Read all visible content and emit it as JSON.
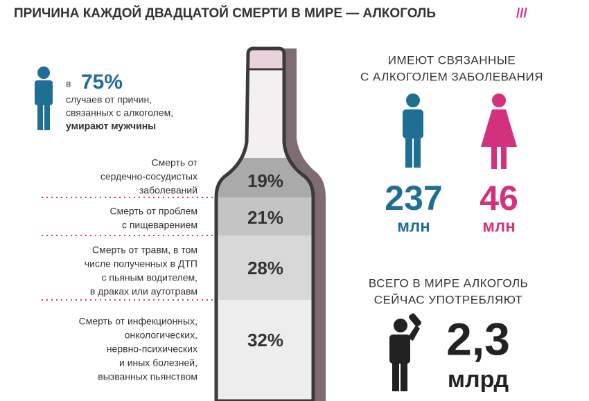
{
  "header": {
    "title": "ПРИЧИНА КАЖДОЙ ДВАДЦАТОЙ СМЕРТИ В МИРЕ — АЛКОГОЛЬ",
    "mark": "///"
  },
  "men_share": {
    "prefix": "в",
    "value": "75%",
    "lines": [
      "случаев от причин,",
      "связанных с алкоголем,"
    ],
    "emphasis": "умирают мужчины"
  },
  "causes": [
    {
      "lines": [
        "Смерть от",
        "сердечно-сосудистых",
        "заболеваний"
      ],
      "share": "19%"
    },
    {
      "lines": [
        "Смерть от проблем",
        "с пищеварением"
      ],
      "share": "21%"
    },
    {
      "lines": [
        "Смерть от травм, в том",
        "числе полученных в ДТП",
        "с пьяным водителем,",
        "в драках или аутотравм"
      ],
      "share": "28%"
    },
    {
      "lines": [
        "Смерть от инфекционных,",
        "онкологических,",
        "нервно-психических",
        "и иных болезней,",
        "вызванных пьянством"
      ],
      "share": "32%"
    }
  ],
  "diseases": {
    "lines": [
      "ИМЕЮТ СВЯЗАННЫЕ",
      "С АЛКОГОЛЕМ ЗАБОЛЕВАНИЯ"
    ],
    "men": {
      "value": "237",
      "unit": "млн"
    },
    "women": {
      "value": "46",
      "unit": "млн"
    }
  },
  "drinkers": {
    "lines": [
      "ВСЕГО В МИРЕ АЛКОГОЛЬ",
      "СЕЙЧАС УПОТРЕБЛЯЮТ"
    ],
    "value": "2,3",
    "unit": "млрд"
  }
}
